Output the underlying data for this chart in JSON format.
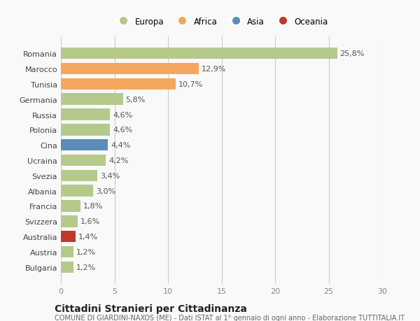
{
  "countries": [
    "Bulgaria",
    "Austria",
    "Australia",
    "Svizzera",
    "Francia",
    "Albania",
    "Svezia",
    "Ucraina",
    "Cina",
    "Polonia",
    "Russia",
    "Germania",
    "Tunisia",
    "Marocco",
    "Romania"
  ],
  "values": [
    1.2,
    1.2,
    1.4,
    1.6,
    1.8,
    3.0,
    3.4,
    4.2,
    4.4,
    4.6,
    4.6,
    5.8,
    10.7,
    12.9,
    25.8
  ],
  "labels": [
    "1,2%",
    "1,2%",
    "1,4%",
    "1,6%",
    "1,8%",
    "3,0%",
    "3,4%",
    "4,2%",
    "4,4%",
    "4,6%",
    "4,6%",
    "5,8%",
    "10,7%",
    "12,9%",
    "25,8%"
  ],
  "colors": [
    "#b5c98a",
    "#b5c98a",
    "#c0392b",
    "#b5c98a",
    "#b5c98a",
    "#b5c98a",
    "#b5c98a",
    "#b5c98a",
    "#5b8db8",
    "#b5c98a",
    "#b5c98a",
    "#b5c98a",
    "#f4a65e",
    "#f4a65e",
    "#b5c98a"
  ],
  "legend_labels": [
    "Europa",
    "Africa",
    "Asia",
    "Oceania"
  ],
  "legend_colors": [
    "#b5c98a",
    "#f4a65e",
    "#5b8db8",
    "#c0392b"
  ],
  "xlim": [
    0,
    30
  ],
  "xticks": [
    0,
    5,
    10,
    15,
    20,
    25,
    30
  ],
  "title": "Cittadini Stranieri per Cittadinanza",
  "subtitle": "COMUNE DI GIARDINI-NAXOS (ME) - Dati ISTAT al 1° gennaio di ogni anno - Elaborazione TUTTITALIA.IT",
  "bg_color": "#f9f9f9",
  "grid_color": "#cccccc",
  "bar_height": 0.75,
  "label_fontsize": 8,
  "tick_fontsize": 8,
  "title_fontsize": 10,
  "subtitle_fontsize": 7
}
